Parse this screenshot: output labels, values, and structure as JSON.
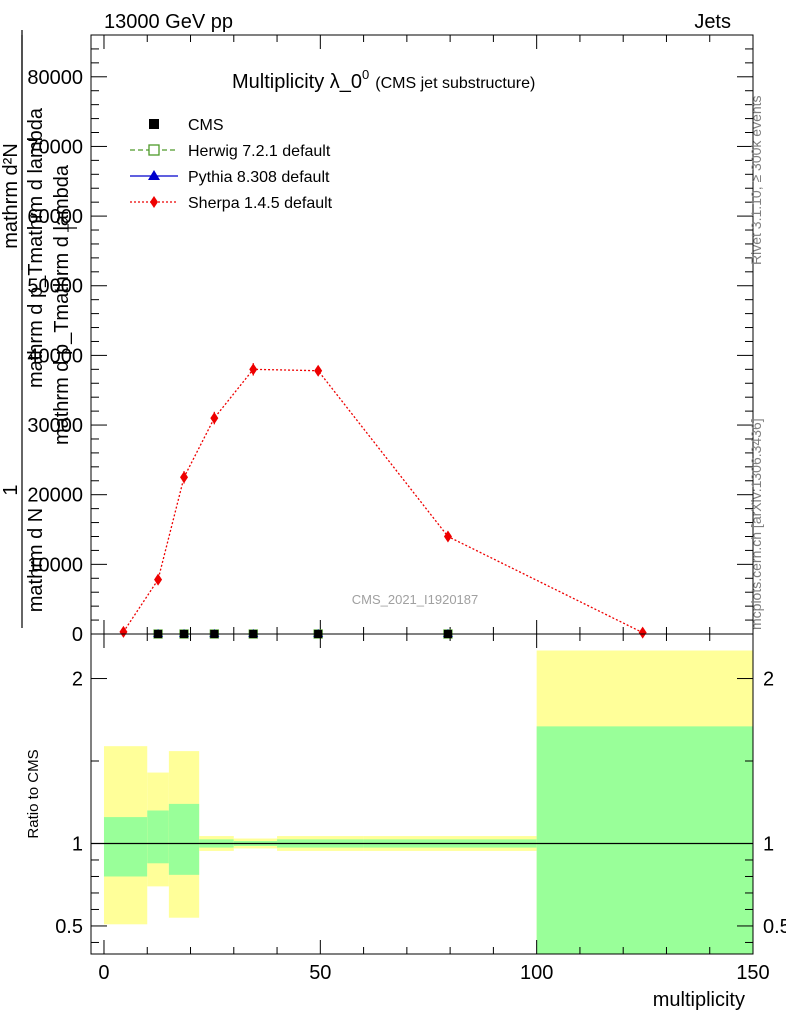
{
  "header": {
    "left": "13000 GeV pp",
    "right": "Jets"
  },
  "side_text": {
    "rivet": "Rivet 3.1.10, ≥ 300k events",
    "mcplots": "mcplots.cern.ch [arXiv:1306.3436]"
  },
  "watermark": "CMS_2021_I1920187",
  "colors": {
    "cms": "#000000",
    "herwig": "#4f9a2a",
    "pythia": "#0000cc",
    "sherpa": "#ee0000",
    "band_inner": "#99ff99",
    "band_outer": "#ffff99"
  },
  "chart_data": [
    {
      "type": "line",
      "title_main": "Multiplicity λ_0",
      "title_sup": "0",
      "title_sub": "(CMS jet substructure)",
      "ylabel_numer": "1",
      "ylabel_denom": "mathrm d N",
      "ylabel2_numer": "mathrm d²N",
      "ylabel2_denom": "mathrm d p_Tmathrm d lambda",
      "ylabel2_overlay": "mathrm d p_Tmathrm d lambda",
      "ylabel2_T": "T",
      "xlim": [
        -3,
        150
      ],
      "ylim": [
        0,
        86000
      ],
      "yticks": [
        0,
        10000,
        20000,
        30000,
        40000,
        50000,
        60000,
        70000,
        80000
      ],
      "ytick_labels": [
        "0",
        "10000",
        "20000",
        "30000",
        "40000",
        "50000",
        "60000",
        "70000",
        "80000"
      ],
      "legend_position": "top-left",
      "legend": [
        {
          "key": "cms",
          "label": "CMS"
        },
        {
          "key": "herwig",
          "label": "Herwig 7.2.1 default"
        },
        {
          "key": "pythia",
          "label": "Pythia 8.308 default"
        },
        {
          "key": "sherpa",
          "label": "Sherpa 1.4.5 default"
        }
      ],
      "series": [
        {
          "key": "cms",
          "x": [
            12.5,
            18.5,
            25.5,
            34.5,
            49.5,
            79.5
          ],
          "y": [
            0,
            0,
            0,
            0,
            0,
            0
          ]
        },
        {
          "key": "herwig",
          "x": [
            12.5,
            18.5,
            25.5,
            34.5,
            49.5,
            79.5
          ],
          "y": [
            0,
            0,
            0,
            0,
            0,
            0
          ]
        },
        {
          "key": "pythia",
          "x": [
            12.5,
            18.5,
            25.5,
            34.5,
            49.5,
            79.5
          ],
          "y": [
            0,
            0,
            0,
            0,
            0,
            0
          ]
        },
        {
          "key": "sherpa",
          "x": [
            4.5,
            12.5,
            18.5,
            25.5,
            34.5,
            49.5,
            79.5,
            124.5
          ],
          "y": [
            300,
            7800,
            22500,
            31000,
            38000,
            37800,
            14000,
            200
          ],
          "yerr": [
            100,
            600,
            900,
            900,
            900,
            500,
            300,
            100
          ]
        }
      ]
    },
    {
      "type": "area",
      "ylabel": "Ratio to CMS",
      "xlabel": "multiplicity",
      "xlim": [
        -3,
        150
      ],
      "ylim": [
        0.33,
        2.27
      ],
      "xticks": [
        0,
        50,
        100,
        150
      ],
      "xtick_labels": [
        "0",
        "50",
        "100",
        "150"
      ],
      "yticks": [
        0.5,
        1,
        2
      ],
      "ytick_labels": [
        "0.5",
        "1",
        "2"
      ],
      "reference": 1,
      "bands": [
        {
          "x0": 0,
          "x1": 10,
          "inner": [
            0.8,
            1.16
          ],
          "outer": [
            0.51,
            1.59
          ]
        },
        {
          "x0": 10,
          "x1": 15,
          "inner": [
            0.88,
            1.2
          ],
          "outer": [
            0.74,
            1.43
          ]
        },
        {
          "x0": 15,
          "x1": 22,
          "inner": [
            0.81,
            1.24
          ],
          "outer": [
            0.55,
            1.56
          ]
        },
        {
          "x0": 22,
          "x1": 30,
          "inner": [
            0.975,
            1.025
          ],
          "outer": [
            0.955,
            1.045
          ]
        },
        {
          "x0": 30,
          "x1": 40,
          "inner": [
            0.985,
            1.015
          ],
          "outer": [
            0.97,
            1.03
          ]
        },
        {
          "x0": 40,
          "x1": 60,
          "inner": [
            0.975,
            1.025
          ],
          "outer": [
            0.955,
            1.045
          ]
        },
        {
          "x0": 60,
          "x1": 100,
          "inner": [
            0.975,
            1.025
          ],
          "outer": [
            0.955,
            1.045
          ]
        },
        {
          "x0": 100,
          "x1": 150,
          "inner": [
            0.33,
            1.71
          ],
          "outer": [
            0.33,
            2.17
          ]
        }
      ]
    }
  ]
}
